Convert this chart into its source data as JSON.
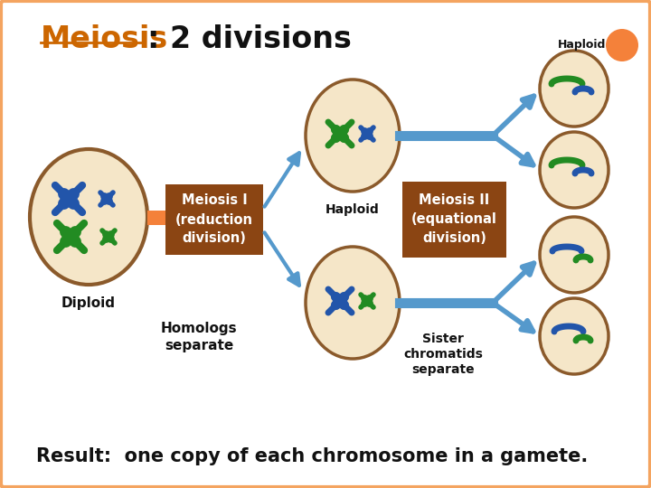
{
  "bg_color": "#ffffff",
  "title_meiosis": "Meiosis",
  "title_rest": ": 2 divisions",
  "title_color": "#cc6600",
  "cell_fill": "#f5e6c8",
  "cell_edge": "#8B5A2B",
  "box_fill": "#8B4513",
  "box_text_color": "#ffffff",
  "arrow_color": "#5599cc",
  "blue_chr": "#2255aa",
  "green_chr": "#228B22",
  "result_text": "Result:  one copy of each chromosome in a gamete.",
  "diploid_label": "Diploid",
  "haploid_label": "Haploid",
  "haploid_label2": "Haploid",
  "homologs_label": "Homologs\nseparate",
  "sister_label": "Sister\nchromatids\nseparate",
  "meiosis1_label": "Meiosis I\n(reduction\ndivision)",
  "meiosis2_label": "Meiosis II\n(equational\ndivision)",
  "border_color": "#f4a460",
  "orange_color": "#f4813a",
  "connector_color": "#f4813a"
}
